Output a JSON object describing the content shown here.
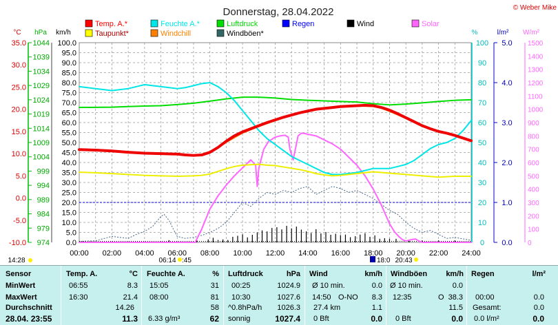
{
  "chart_data": {
    "type": "line",
    "title": "Donnerstag, 28.04.2022",
    "copyright": "© Weber Mike",
    "x_ticks": [
      "00:00",
      "02:00",
      "04:00",
      "06:00",
      "08:00",
      "10:00",
      "12:00",
      "14:00",
      "16:00",
      "18:00",
      "20:00",
      "22:00",
      "24:00"
    ],
    "axes": {
      "temp_c": {
        "unit": "°C",
        "range": [
          -10,
          35
        ],
        "ticks": [
          "35.0",
          "30.0",
          "25.0",
          "20.0",
          "15.0",
          "10.0",
          "5.0",
          "0.0",
          "-5.0",
          "-10.0"
        ],
        "color": "#ff0000"
      },
      "pressure_hpa": {
        "unit": "hPa",
        "range": [
          974,
          1044
        ],
        "ticks": [
          "1044",
          "1039",
          "1034",
          "1029",
          "1024",
          "1019",
          "1014",
          "1009",
          "1004",
          "999",
          "994",
          "989",
          "984",
          "979",
          "974"
        ],
        "color": "#00aa00"
      },
      "wind_kmh": {
        "unit": "km/h",
        "range": [
          0,
          100
        ],
        "ticks": [
          "100.0",
          "95.0",
          "90.0",
          "85.0",
          "80.0",
          "75.0",
          "70.0",
          "65.0",
          "60.0",
          "55.0",
          "50.0",
          "45.0",
          "40.0",
          "35.0",
          "30.0",
          "25.0",
          "20.0",
          "15.0",
          "10.0",
          "5.0",
          "0.0"
        ],
        "color": "#000000"
      },
      "humidity_pct": {
        "unit": "%",
        "range": [
          0,
          100
        ],
        "ticks": [
          "100",
          "90",
          "80",
          "70",
          "60",
          "50",
          "40",
          "30",
          "20",
          "10",
          "0"
        ],
        "color": "#00cccc"
      },
      "rain_lm2": {
        "unit": "l/m²",
        "range": [
          0,
          5
        ],
        "ticks": [
          "5.0",
          "4.0",
          "3.0",
          "2.0",
          "1.0",
          "0.0"
        ],
        "color": "#0000cc"
      },
      "solar_wm2": {
        "unit": "W/m²",
        "range": [
          0,
          1500
        ],
        "ticks": [
          "1500",
          "1400",
          "1300",
          "1200",
          "1100",
          "1000",
          "900",
          "800",
          "700",
          "600",
          "500",
          "400",
          "300",
          "200",
          "100",
          "0"
        ],
        "color": "#ff66ff"
      }
    },
    "legend": [
      {
        "name": "Temp. A.*",
        "color": "#ff0000"
      },
      {
        "name": "Feuchte A.*",
        "color": "#00e5e5"
      },
      {
        "name": "Luftdruck",
        "color": "#00dd00"
      },
      {
        "name": "Regen",
        "color": "#0000ff"
      },
      {
        "name": "Wind",
        "color": "#000000"
      },
      {
        "name": "Solar",
        "color": "#ff66ff"
      },
      {
        "name": "Taupunkt*",
        "color": "#ffff00"
      },
      {
        "name": "Windchill",
        "color": "#ff8000"
      },
      {
        "name": "Windböen*",
        "color": "#336666"
      }
    ],
    "series": [
      {
        "name": "Temp. A.*",
        "axis": "temp_c",
        "color": "#ee0000",
        "width": 4,
        "x": [
          0,
          1,
          2,
          3,
          4,
          5,
          6,
          6.5,
          7,
          7.5,
          8,
          8.5,
          9,
          9.5,
          10,
          10.5,
          11,
          11.5,
          12,
          12.5,
          13,
          13.5,
          14,
          14.5,
          15,
          15.5,
          16,
          16.5,
          17,
          17.5,
          18,
          18.5,
          19,
          19.5,
          20,
          20.5,
          21,
          21.5,
          22,
          22.5,
          23,
          23.5,
          24
        ],
        "y": [
          10.9,
          10.8,
          10.6,
          10.3,
          10.1,
          10.0,
          9.9,
          9.7,
          9.6,
          9.7,
          10.3,
          11.4,
          12.8,
          14.0,
          14.9,
          15.6,
          16.3,
          17.0,
          17.6,
          18.2,
          18.7,
          19.2,
          19.6,
          20.0,
          20.2,
          20.4,
          20.6,
          20.7,
          20.8,
          20.9,
          20.8,
          20.4,
          19.8,
          19.0,
          18.1,
          17.2,
          16.3,
          15.6,
          15.0,
          14.6,
          14.1,
          13.5,
          12.9
        ]
      },
      {
        "name": "Windchill",
        "axis": "temp_c",
        "color": "#ff8000",
        "width": 1.5,
        "x": [
          0,
          2,
          4,
          6,
          7,
          7.5,
          8,
          9,
          10,
          11,
          12,
          13,
          14,
          15,
          16,
          17,
          18,
          18.5,
          19,
          19.5,
          20,
          21,
          22,
          23,
          24
        ],
        "y": [
          10.8,
          10.5,
          10.0,
          9.8,
          9.5,
          9.6,
          10.1,
          12.5,
          14.6,
          16.1,
          17.4,
          18.6,
          19.5,
          20.1,
          20.5,
          20.7,
          20.6,
          20.2,
          19.5,
          18.7,
          17.9,
          16.1,
          14.9,
          14.0,
          12.8
        ]
      },
      {
        "name": "Taupunkt*",
        "axis": "temp_c",
        "color": "#eeee00",
        "width": 2,
        "x": [
          0,
          1,
          2,
          3,
          4,
          5,
          6,
          7,
          7.5,
          8,
          8.5,
          9,
          9.5,
          10,
          10.5,
          11,
          11.5,
          12,
          12.5,
          13,
          13.5,
          14,
          14.5,
          15,
          15.5,
          16,
          17,
          18,
          19,
          20,
          21,
          22,
          23,
          24
        ],
        "y": [
          5.8,
          5.7,
          5.5,
          5.3,
          5.1,
          5.0,
          4.9,
          5.0,
          5.1,
          5.4,
          6.0,
          6.6,
          7.1,
          7.4,
          7.5,
          7.6,
          7.4,
          7.3,
          7.0,
          6.7,
          6.4,
          6.0,
          5.5,
          5.2,
          5.0,
          5.1,
          5.5,
          5.9,
          5.6,
          5.3,
          5.0,
          4.7,
          4.9,
          4.9
        ]
      },
      {
        "name": "Feuchte A.*",
        "axis": "humidity_pct",
        "color": "#00e5e5",
        "width": 2,
        "x": [
          0,
          0.5,
          1,
          1.5,
          2,
          2.5,
          3,
          3.5,
          4,
          4.5,
          5,
          5.5,
          6,
          6.5,
          7,
          7.5,
          8,
          8.5,
          9,
          9.5,
          10,
          10.5,
          11,
          11.5,
          12,
          12.5,
          13,
          13.5,
          14,
          14.5,
          15,
          15.5,
          16,
          16.5,
          17,
          17.5,
          18,
          18.5,
          19,
          19.5,
          20,
          20.5,
          21,
          21.5,
          22,
          22.5,
          23,
          23.5,
          24
        ],
        "y": [
          78,
          77.5,
          77,
          76.5,
          76,
          76.5,
          77,
          78,
          79,
          78.5,
          78,
          77.5,
          77,
          77.5,
          78.5,
          79.5,
          80,
          78,
          75,
          71,
          66,
          61,
          56,
          52,
          49,
          46,
          43,
          41,
          39,
          37,
          35,
          34,
          34,
          34.5,
          35,
          36,
          37,
          37,
          37,
          38,
          39,
          41,
          44,
          47,
          49,
          50,
          52,
          56,
          61
        ]
      },
      {
        "name": "Luftdruck",
        "axis": "pressure_hpa",
        "color": "#00dd00",
        "width": 2,
        "x": [
          0,
          2,
          3,
          4,
          5,
          6,
          7,
          8,
          9,
          10,
          11,
          12,
          13,
          14,
          15,
          16,
          17,
          18,
          19,
          20,
          21,
          22,
          23,
          24
        ],
        "y": [
          1021.3,
          1021.4,
          1021.6,
          1021.8,
          1021.9,
          1022.3,
          1022.8,
          1023.5,
          1024.3,
          1024.9,
          1024.9,
          1024.6,
          1024.1,
          1023.8,
          1023.6,
          1023.4,
          1023.2,
          1022.6,
          1022.2,
          1022.5,
          1022.9,
          1023.4,
          1023.8,
          1024.0
        ]
      },
      {
        "name": "Solar",
        "axis": "solar_wm2",
        "color": "#ff66ff",
        "width": 2,
        "x": [
          0,
          6,
          6.9,
          7.1,
          7.5,
          8,
          8.5,
          9,
          9.5,
          10,
          10.5,
          10.8,
          10.9,
          11,
          11.3,
          11.6,
          12,
          12.3,
          12.6,
          12.8,
          12.9,
          13.1,
          13.4,
          13.6,
          13.8,
          14,
          14.5,
          15,
          15.5,
          16,
          16.5,
          17,
          17.5,
          18,
          18.5,
          19,
          19.3,
          19.6,
          19.8,
          20,
          20.3,
          20.6,
          20.8,
          21,
          24
        ],
        "y": [
          0,
          0,
          0,
          0,
          100,
          250,
          350,
          430,
          500,
          560,
          620,
          580,
          420,
          560,
          700,
          760,
          790,
          800,
          805,
          790,
          700,
          620,
          800,
          820,
          818,
          812,
          800,
          770,
          740,
          700,
          640,
          580,
          500,
          400,
          280,
          140,
          80,
          40,
          20,
          10,
          20,
          25,
          10,
          0,
          0
        ]
      }
    ],
    "wind_bars": {
      "name": "Wind",
      "axis": "wind_kmh",
      "color": "#000000",
      "hours": [
        5.5,
        7.2,
        7.9,
        8.2,
        8.5,
        8.8,
        9.1,
        9.4,
        9.7,
        10.0,
        10.3,
        10.6,
        10.9,
        11.2,
        11.5,
        11.8,
        12.1,
        12.4,
        12.7,
        13.0,
        13.3,
        13.6,
        13.9,
        14.2,
        14.5,
        14.8,
        15.1,
        15.4,
        15.7,
        16.0,
        16.3,
        16.6,
        16.9,
        17.2,
        17.5,
        17.8,
        18.1,
        18.4,
        18.7,
        19.0,
        19.4,
        20.2,
        21.0,
        22.0,
        23.0
      ],
      "values": [
        1.1,
        1.1,
        1.5,
        2.3,
        1.2,
        1.5,
        1.2,
        2.8,
        3.3,
        4.0,
        2.5,
        3.8,
        5.0,
        6.0,
        5.5,
        7.2,
        7.6,
        6.5,
        8.3,
        7.0,
        7.9,
        6.4,
        5.5,
        4.7,
        6.6,
        4.5,
        5.2,
        3.8,
        4.3,
        3.6,
        3.9,
        2.6,
        3.1,
        3.9,
        4.6,
        2.8,
        3.5,
        1.8,
        2.1,
        1.8,
        1.8,
        1.0,
        1.0,
        1.0,
        1.0
      ]
    },
    "gust_series": {
      "name": "Windböen*",
      "axis": "wind_kmh",
      "color": "#446688",
      "x": [
        0,
        1,
        2,
        3,
        3.5,
        4,
        4.5,
        5,
        5.2,
        5.5,
        5.8,
        6,
        6.5,
        7,
        7.5,
        8,
        8.5,
        9,
        9.5,
        10,
        10.5,
        11,
        11.5,
        12,
        12.5,
        13,
        13.5,
        14,
        14.5,
        15,
        15.5,
        16,
        16.5,
        17,
        17.5,
        18,
        18.5,
        19,
        19.5,
        20,
        20.5,
        21,
        21.5,
        22,
        22.5,
        23,
        24
      ],
      "y": [
        0.5,
        0.8,
        3.0,
        2.0,
        4.0,
        5.5,
        8.0,
        13.0,
        14.0,
        11.0,
        6.0,
        3.0,
        2.0,
        2.5,
        3.5,
        5.0,
        7.0,
        10.0,
        15.0,
        20.0,
        18.0,
        22.0,
        25.0,
        24.0,
        26.0,
        25.0,
        27.0,
        28.0,
        24.0,
        26.0,
        28.0,
        27.0,
        25.0,
        26.0,
        24.0,
        22.0,
        19.0,
        16.0,
        14.0,
        10.0,
        7.0,
        5.0,
        6.0,
        4.0,
        2.0,
        2.5,
        1.0
      ]
    },
    "rain_ref_line": 1.0,
    "sun_rise": "06:14",
    "sun_rise_suffix": ":45",
    "sun_set": "20:43",
    "moon_set": "18:0",
    "left_marker_time": "14:28"
  },
  "summary": {
    "headers": {
      "sensor": "Sensor",
      "temp": "Temp. A.",
      "temp_unit": "°C",
      "hum": "Feuchte A.",
      "hum_unit": "%",
      "press": "Luftdruck",
      "press_unit": "hPa",
      "wind": "Wind",
      "wind_unit": "km/h",
      "gust": "Windböen",
      "gust_unit": "km/h",
      "rain": "Regen",
      "rain_unit": "l/m²"
    },
    "rows": {
      "min": {
        "label": "MinWert",
        "temp_time": "06:55",
        "temp_val": "8.3",
        "hum_time": "15:05",
        "hum_val": "31",
        "press_time": "00:25",
        "press_val": "1024.9",
        "wind_text": "Ø 10 min.",
        "wind_val": "0.0",
        "gust_text": "Ø 10 min.",
        "gust_val": "0.0"
      },
      "max": {
        "label": "MaxWert",
        "temp_time": "16:30",
        "temp_val": "21.4",
        "hum_time": "08:00",
        "hum_val": "81",
        "press_time": "10:30",
        "press_val": "1027.6",
        "wind_time": "14:50",
        "wind_dir": "O-NO",
        "wind_val": "8.3",
        "gust_time": "12:35",
        "gust_dir": "O",
        "gust_val": "38.3",
        "rain_time": "00:00",
        "rain_val": "0.0"
      },
      "avg": {
        "label": "Durchschnitt",
        "temp_val": "14.26",
        "hum_val": "58",
        "press_text": "^0.8hPa/h",
        "press_val": "1026.3",
        "wind_text": "27.4 km",
        "wind_val": "1.1",
        "gust_val": "11.5",
        "rain_text": "Gesamt:",
        "rain_val": "0.0"
      },
      "current": {
        "label": "28.04. 23:55",
        "temp_val": "11.3",
        "hum_text": "6.33 g/m³",
        "hum_val": "62",
        "press_text": "sonnig",
        "press_val": "1027.4",
        "wind_text": "0 Bft",
        "wind_val": "0.0",
        "gust_text": "0 Bft",
        "gust_val": "0.0",
        "rain_text": "0.0 l/m²",
        "rain_val": "0.0"
      }
    }
  }
}
